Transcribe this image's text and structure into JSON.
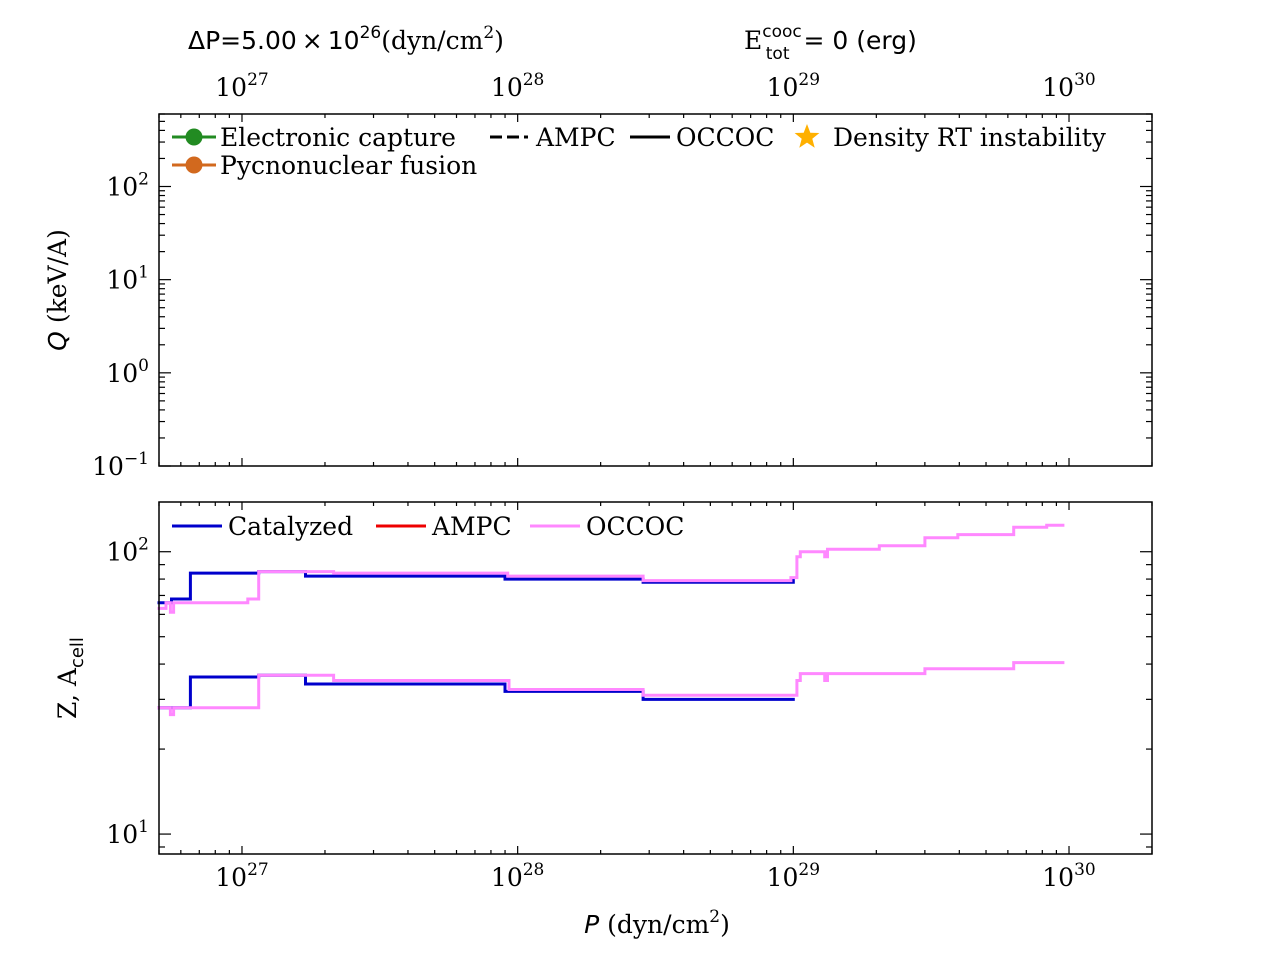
{
  "header": {
    "left_prefix": "ΔP=5.00",
    "left_times": "×",
    "left_base": "10",
    "left_exp": "26",
    "left_unit_open": "(dyn/cm",
    "left_unit_exp": "2",
    "left_unit_close": ")",
    "right_main": "E",
    "right_sup": "cooc",
    "right_sub": "tot",
    "right_rest": "= 0 (erg)"
  },
  "colors": {
    "catalyzed": "#0000cc",
    "ampc": "#ee0000",
    "occoc": "#ff88ff",
    "electronic_capture": "#228b22",
    "pycnonuclear": "#d2691e",
    "star": "#ffb000"
  },
  "chart_data": [
    {
      "type": "line",
      "panel": "top",
      "ylabel_symbol": "Q",
      "ylabel_unit": "(keV/A)",
      "xscale": "log",
      "yscale": "log",
      "xlim": [
        5e+26,
        2e+30
      ],
      "ylim": [
        0.1,
        600
      ],
      "x_ticks": [
        {
          "value": 1e+27,
          "base": "10",
          "exp": "27"
        },
        {
          "value": 1e+28,
          "base": "10",
          "exp": "28"
        },
        {
          "value": 1e+29,
          "base": "10",
          "exp": "29"
        },
        {
          "value": 1e+30,
          "base": "10",
          "exp": "30"
        }
      ],
      "y_ticks": [
        {
          "value": 0.1,
          "base": "10",
          "exp": "−1"
        },
        {
          "value": 1,
          "base": "10",
          "exp": "0"
        },
        {
          "value": 10,
          "base": "10",
          "exp": "1"
        },
        {
          "value": 100,
          "base": "10",
          "exp": "2"
        }
      ],
      "legend": {
        "placement": "top",
        "entries": [
          {
            "label": "Electronic capture",
            "kind": "line-marker",
            "color_key": "electronic_capture"
          },
          {
            "label": "Pycnonuclear fusion",
            "kind": "line-marker",
            "color_key": "pycnonuclear"
          },
          {
            "label": "AMPC",
            "kind": "dashed"
          },
          {
            "label": "OCCOC",
            "kind": "solid"
          },
          {
            "label": "Density RT instability",
            "kind": "star",
            "color_key": "star"
          }
        ]
      },
      "series": []
    },
    {
      "type": "line",
      "panel": "bottom",
      "ylabel_main": "Z, A",
      "ylabel_sub": "cell",
      "xlabel_symbol": "P",
      "xlabel_unit_open": "(dyn/cm",
      "xlabel_unit_exp": "2",
      "xlabel_unit_close": ")",
      "xscale": "log",
      "yscale": "log",
      "xlim": [
        5e+26,
        2e+30
      ],
      "ylim": [
        8.5,
        150
      ],
      "x_ticks": [
        {
          "value": 1e+27,
          "base": "10",
          "exp": "27"
        },
        {
          "value": 1e+28,
          "base": "10",
          "exp": "28"
        },
        {
          "value": 1e+29,
          "base": "10",
          "exp": "29"
        },
        {
          "value": 1e+30,
          "base": "10",
          "exp": "30"
        }
      ],
      "y_ticks": [
        {
          "value": 10,
          "base": "10",
          "exp": "1"
        },
        {
          "value": 100,
          "base": "10",
          "exp": "2"
        }
      ],
      "legend": {
        "placement": "top-left",
        "entries": [
          {
            "label": "Catalyzed",
            "color_key": "catalyzed"
          },
          {
            "label": "AMPC",
            "color_key": "ampc"
          },
          {
            "label": "OCCOC",
            "color_key": "occoc"
          }
        ]
      },
      "series": [
        {
          "name": "Catalyzed A",
          "color_key": "catalyzed",
          "width": 3,
          "points": [
            [
              5e+26,
              66
            ],
            [
              5.55e+26,
              66
            ],
            [
              5.55e+26,
              68
            ],
            [
              6.5e+26,
              68
            ],
            [
              6.5e+26,
              84
            ],
            [
              1.15e+27,
              84
            ],
            [
              1.15e+27,
              85
            ],
            [
              1.7e+27,
              85
            ],
            [
              1.7e+27,
              82
            ],
            [
              9e+27,
              82
            ],
            [
              9e+27,
              80
            ],
            [
              2.85e+28,
              80
            ],
            [
              2.85e+28,
              78
            ],
            [
              1e+29,
              78
            ],
            [
              1e+29,
              80
            ]
          ]
        },
        {
          "name": "Catalyzed Z",
          "color_key": "catalyzed",
          "width": 3,
          "points": [
            [
              5e+26,
              28
            ],
            [
              6.5e+26,
              28
            ],
            [
              6.5e+26,
              36
            ],
            [
              1.15e+27,
              36
            ],
            [
              1.15e+27,
              36.5
            ],
            [
              1.7e+27,
              36.5
            ],
            [
              1.7e+27,
              34
            ],
            [
              9e+27,
              34
            ],
            [
              9e+27,
              32
            ],
            [
              2.85e+28,
              32
            ],
            [
              2.85e+28,
              30
            ],
            [
              1e+29,
              30
            ]
          ]
        },
        {
          "name": "OCCOC A",
          "color_key": "occoc",
          "width": 3,
          "points": [
            [
              5e+26,
              63
            ],
            [
              5.3e+26,
              63
            ],
            [
              5.3e+26,
              66
            ],
            [
              5.5e+26,
              66
            ],
            [
              5.5e+26,
              61
            ],
            [
              5.65e+26,
              61
            ],
            [
              5.65e+26,
              66
            ],
            [
              1.05e+27,
              66
            ],
            [
              1.05e+27,
              68
            ],
            [
              1.15e+27,
              68
            ],
            [
              1.15e+27,
              85
            ],
            [
              2.15e+27,
              85
            ],
            [
              2.15e+27,
              84
            ],
            [
              9.2e+27,
              84
            ],
            [
              9.2e+27,
              82
            ],
            [
              2.85e+28,
              82
            ],
            [
              2.85e+28,
              79
            ],
            [
              9.8e+28,
              79
            ],
            [
              9.8e+28,
              81
            ],
            [
              1.03e+29,
              81
            ],
            [
              1.03e+29,
              96
            ],
            [
              1.06e+29,
              96
            ],
            [
              1.06e+29,
              100
            ],
            [
              1.3e+29,
              100
            ],
            [
              1.3e+29,
              96
            ],
            [
              1.33e+29,
              96
            ],
            [
              1.33e+29,
              102
            ],
            [
              2.05e+29,
              102
            ],
            [
              2.05e+29,
              105
            ],
            [
              3e+29,
              105
            ],
            [
              3e+29,
              112
            ],
            [
              3.95e+29,
              112
            ],
            [
              3.95e+29,
              115
            ],
            [
              6.3e+29,
              115
            ],
            [
              6.3e+29,
              122
            ],
            [
              8.3e+29,
              122
            ],
            [
              8.3e+29,
              124
            ],
            [
              9.5e+29,
              124
            ]
          ]
        },
        {
          "name": "OCCOC Z",
          "color_key": "occoc",
          "width": 3,
          "points": [
            [
              5e+26,
              28
            ],
            [
              5.5e+26,
              28
            ],
            [
              5.5e+26,
              26.5
            ],
            [
              5.65e+26,
              26.5
            ],
            [
              5.65e+26,
              28
            ],
            [
              1.15e+27,
              28
            ],
            [
              1.15e+27,
              36.5
            ],
            [
              2.15e+27,
              36.5
            ],
            [
              2.15e+27,
              35
            ],
            [
              9.3e+27,
              35
            ],
            [
              9.3e+27,
              32.5
            ],
            [
              2.85e+28,
              32.5
            ],
            [
              2.85e+28,
              31
            ],
            [
              1.03e+29,
              31
            ],
            [
              1.03e+29,
              35
            ],
            [
              1.06e+29,
              35
            ],
            [
              1.06e+29,
              37
            ],
            [
              1.3e+29,
              37
            ],
            [
              1.3e+29,
              35
            ],
            [
              1.33e+29,
              35
            ],
            [
              1.33e+29,
              37
            ],
            [
              3e+29,
              37
            ],
            [
              3e+29,
              38.5
            ],
            [
              6.3e+29,
              38.5
            ],
            [
              6.3e+29,
              40.5
            ],
            [
              9.5e+29,
              40.5
            ]
          ]
        }
      ]
    }
  ]
}
